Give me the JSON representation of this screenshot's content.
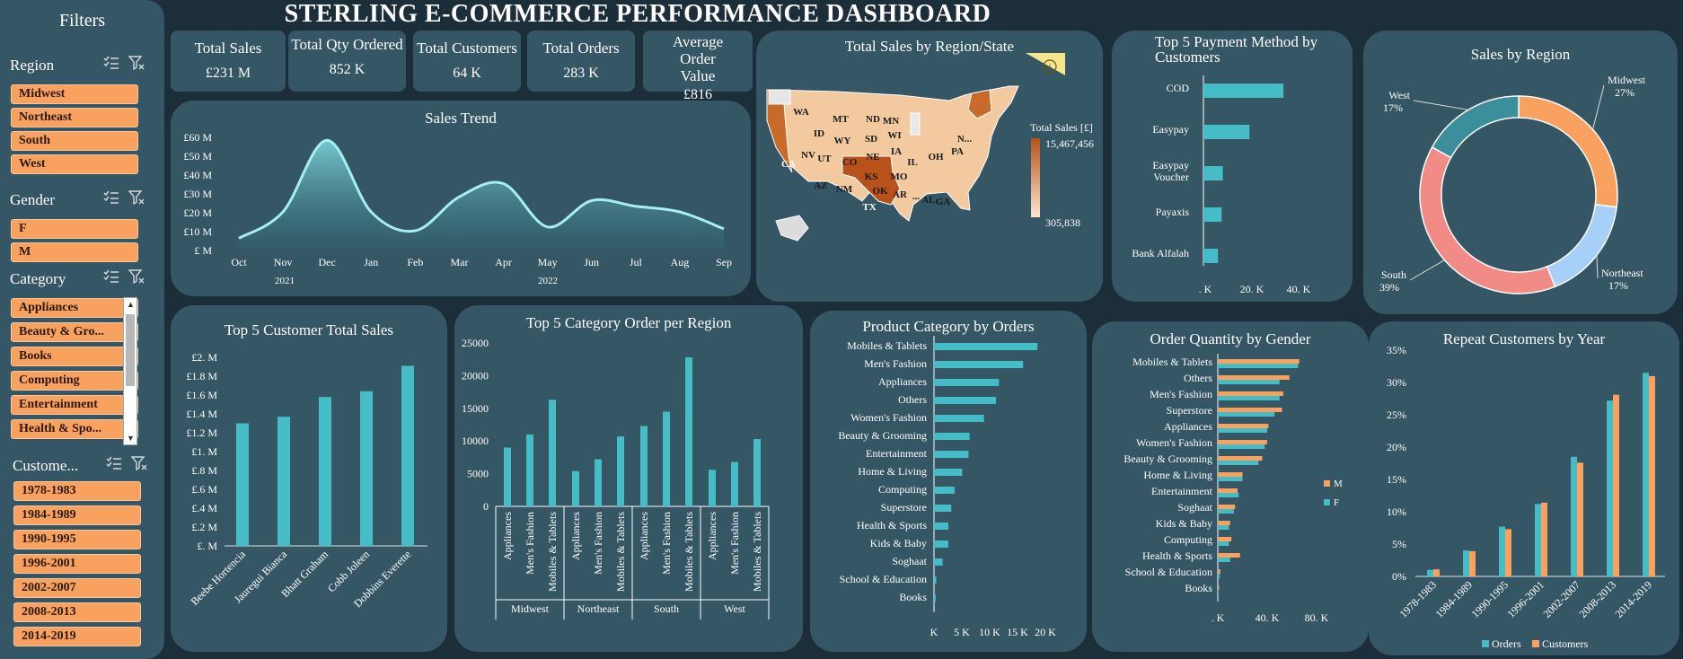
{
  "title": "STERLING E-COMMERCE PERFORMANCE DASHBOARD",
  "filters": {
    "heading": "Filters",
    "region": {
      "label": "Region",
      "items": [
        "Midwest",
        "Northeast",
        "South",
        "West"
      ]
    },
    "gender": {
      "label": "Gender",
      "items": [
        "F",
        "M"
      ]
    },
    "category": {
      "label": "Category",
      "items": [
        "Appliances",
        "Beauty & Gro...",
        "Books",
        "Computing",
        "Entertainment",
        "Health & Spo..."
      ]
    },
    "customer": {
      "label": "Custome...",
      "items": [
        "1978-1983",
        "1984-1989",
        "1990-1995",
        "1996-2001",
        "2002-2007",
        "2008-2013",
        "2014-2019"
      ]
    }
  },
  "kpis": [
    {
      "label": "Total Sales",
      "value": "£231 M"
    },
    {
      "label": "Total Qty Ordered",
      "value": "852 K"
    },
    {
      "label": "Total Customers",
      "value": "64 K"
    },
    {
      "label": "Total Orders",
      "value": "283 K"
    },
    {
      "label": "Average Order Value",
      "value": "£816"
    }
  ],
  "colors": {
    "bar": "#46bcc6",
    "orange": "#f9a15e",
    "panel": "#355664",
    "bg": "#1c2e3a"
  },
  "chart_data": [
    {
      "id": "sales_trend",
      "type": "area",
      "title": "Sales Trend",
      "x": [
        "Oct",
        "Nov",
        "Dec",
        "Jan",
        "Feb",
        "Mar",
        "Apr",
        "May",
        "Jun",
        "Jul",
        "Aug",
        "Sep"
      ],
      "year_labels": [
        "2021",
        "2022"
      ],
      "values": [
        6,
        20,
        58,
        20,
        10,
        28,
        35,
        12,
        26,
        23,
        20,
        11
      ],
      "y_ticks": [
        "£60 M",
        "£50 M",
        "£40 M",
        "£30 M",
        "£20 M",
        "£10 M",
        "£ M"
      ],
      "ylim": [
        0,
        60
      ]
    },
    {
      "id": "map",
      "type": "heatmap",
      "title": "Total Sales by Region/State",
      "legend_title": "Total Sales [£]",
      "legend_max": "15,467,456",
      "legend_min": "305,838",
      "states": [
        "WA",
        "MT",
        "ND",
        "MN",
        "ID",
        "WY",
        "SD",
        "WI",
        "NV",
        "UT",
        "CO",
        "NE",
        "IA",
        "IL",
        "OH",
        "PA",
        "N...",
        "CA",
        "KS",
        "MO",
        "AZ",
        "NM",
        "OK",
        "AR",
        "TX",
        "...",
        "AL",
        "GA"
      ]
    },
    {
      "id": "payment",
      "type": "bar",
      "title": "Top 5 Payment Method by Customers",
      "categories": [
        "COD",
        "Easypay",
        "Easypay Voucher",
        "Payaxis",
        "Bank Alfalah"
      ],
      "values": [
        33000,
        19000,
        8000,
        7500,
        6000
      ],
      "x_ticks": [
        ". K",
        "20. K",
        "40. K"
      ],
      "xlim": [
        0,
        50000
      ]
    },
    {
      "id": "sales_region",
      "type": "pie",
      "title": "Sales by Region",
      "categories": [
        "Midwest",
        "Northeast",
        "South",
        "West"
      ],
      "values": [
        27,
        17,
        39,
        17
      ],
      "labels": [
        "27%",
        "17%",
        "39%",
        "17%"
      ],
      "colors": [
        "#f9a15e",
        "#a6d0f7",
        "#f08b85",
        "#3a8f9a"
      ]
    },
    {
      "id": "top_customers",
      "type": "bar",
      "title": "Top 5 Customer Total Sales",
      "categories": [
        "Beebe Hortencia",
        "Jauregui Bianca",
        "Bhatt Graham",
        "Cobb Joleen",
        "Dobbins Everette"
      ],
      "values": [
        1.3,
        1.37,
        1.58,
        1.64,
        1.91
      ],
      "y_ticks": [
        "£2. M",
        "£1.8 M",
        "£1.6 M",
        "£1.4 M",
        "£1.2 M",
        "£1. M",
        "£.8 M",
        "£.6 M",
        "£.4 M",
        "£.2 M",
        "£. M"
      ],
      "ylim": [
        0,
        2
      ]
    },
    {
      "id": "category_region",
      "type": "bar",
      "title": "Top 5 Category Order per Region",
      "groups": [
        "Midwest",
        "Northeast",
        "South",
        "West"
      ],
      "categories": [
        "Appliances",
        "Men's Fashion",
        "Mobiles & Tablets"
      ],
      "series": [
        {
          "group": "Midwest",
          "values": [
            9000,
            11000,
            16300
          ]
        },
        {
          "group": "Northeast",
          "values": [
            5400,
            7200,
            10700
          ]
        },
        {
          "group": "South",
          "values": [
            12300,
            14500,
            22800
          ]
        },
        {
          "group": "West",
          "values": [
            5600,
            6800,
            10300
          ]
        }
      ],
      "y_ticks": [
        "25000",
        "20000",
        "15000",
        "10000",
        "5000",
        "0"
      ],
      "ylim": [
        0,
        25000
      ]
    },
    {
      "id": "product_orders",
      "type": "bar",
      "title": "Product Category by Orders",
      "categories": [
        "Mobiles & Tablets",
        "Men's Fashion",
        "Appliances",
        "Others",
        "Women's Fashion",
        "Beauty & Grooming",
        "Entertainment",
        "Home & Living",
        "Computing",
        "Superstore",
        "Health & Sports",
        "Kids & Baby",
        "Soghaat",
        "School & Education",
        "Books"
      ],
      "values": [
        18000,
        15500,
        11300,
        10800,
        8700,
        6200,
        6000,
        4900,
        3600,
        3000,
        2500,
        2500,
        1500,
        400,
        300
      ],
      "x_ticks": [
        "K",
        "5 K",
        "10 K",
        "15 K",
        "20 K"
      ],
      "xlim": [
        0,
        20000
      ]
    },
    {
      "id": "qty_gender",
      "type": "bar",
      "title": "Order Quantity by Gender",
      "categories": [
        "Mobiles & Tablets",
        "Others",
        "Men's Fashion",
        "Superstore",
        "Appliances",
        "Women's Fashion",
        "Beauty & Grooming",
        "Home & Living",
        "Entertainment",
        "Soghaat",
        "Kids & Baby",
        "Computing",
        "Health & Sports",
        "School & Education",
        "Books"
      ],
      "series": [
        {
          "name": "M",
          "values": [
            66000,
            58000,
            53000,
            52000,
            41000,
            40000,
            36000,
            20000,
            16000,
            14000,
            10000,
            11000,
            18000,
            2000,
            1000
          ]
        },
        {
          "name": "F",
          "values": [
            65000,
            50000,
            50000,
            46000,
            40000,
            38000,
            33000,
            20000,
            17000,
            13000,
            9000,
            9000,
            10000,
            1500,
            600
          ]
        }
      ],
      "x_ticks": [
        ". K",
        "40. K",
        "80. K"
      ],
      "xlim": [
        0,
        80000
      ]
    },
    {
      "id": "repeat_customers",
      "type": "bar",
      "title": "Repeat Customers by Year",
      "categories": [
        "1978-1983",
        "1984-1989",
        "1990-1995",
        "1996-2001",
        "2002-2007",
        "2008-2013",
        "2014-2019"
      ],
      "series": [
        {
          "name": "Orders",
          "values": [
            1.0,
            4.0,
            7.7,
            11.2,
            18.5,
            27.2,
            31.5
          ]
        },
        {
          "name": "Customers",
          "values": [
            1.1,
            3.9,
            7.3,
            11.4,
            17.6,
            28.1,
            31.0
          ]
        }
      ],
      "y_ticks": [
        "35%",
        "30%",
        "25%",
        "20%",
        "15%",
        "10%",
        "5%",
        "0%"
      ],
      "ylim": [
        0,
        35
      ]
    }
  ]
}
